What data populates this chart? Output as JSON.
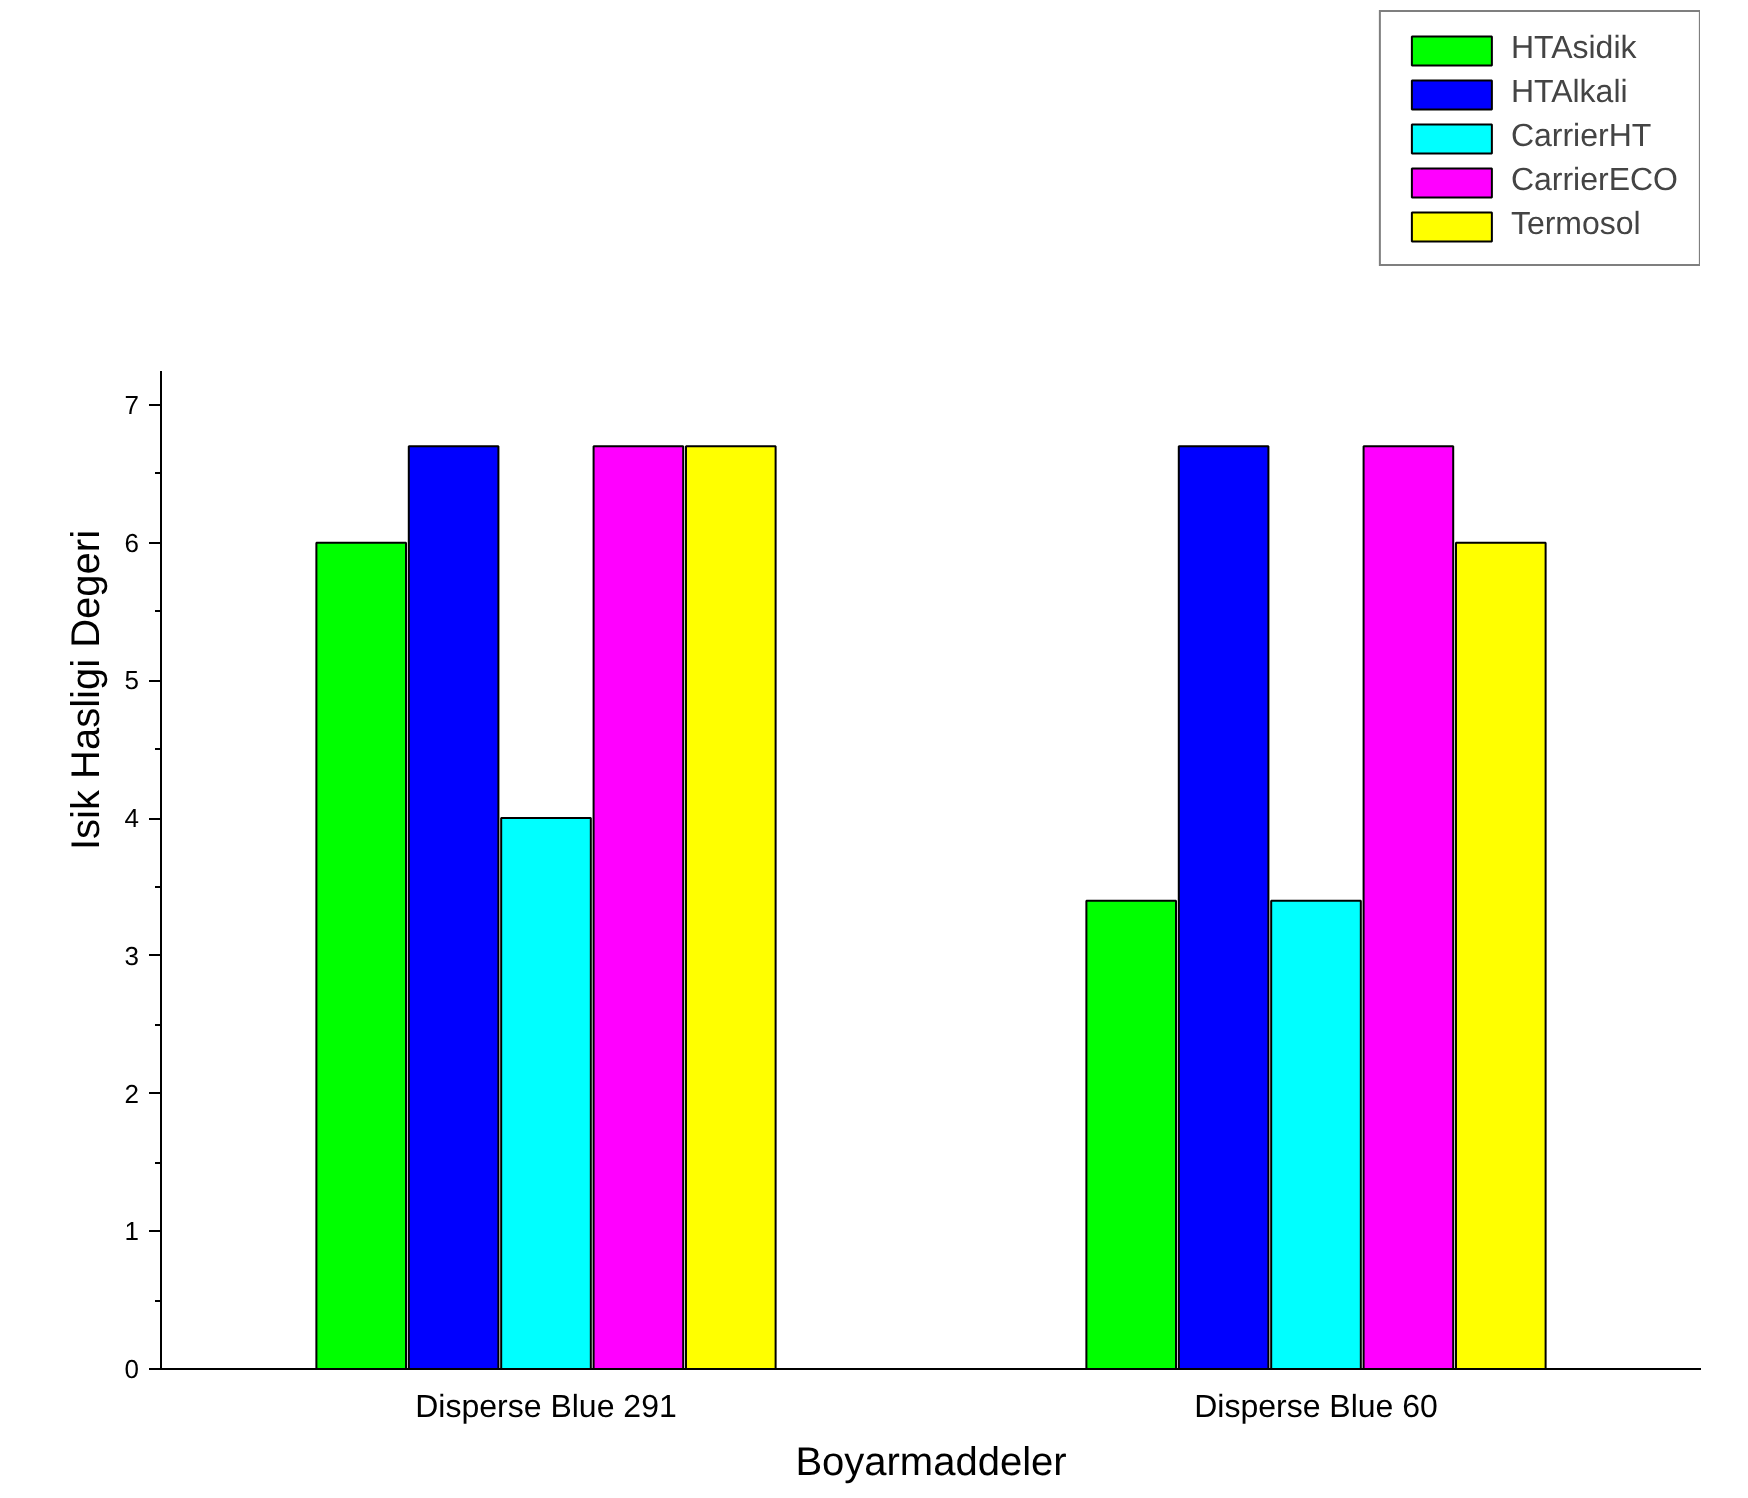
{
  "chart_data": {
    "type": "bar",
    "xlabel": "Boyarmaddeler",
    "ylabel": "Isik Hasligi Degeri",
    "categories": [
      "Disperse Blue 291",
      "Disperse Blue 60"
    ],
    "series": [
      {
        "name": "HTAsidik",
        "color": "#00ff00",
        "values": [
          6,
          3.4
        ]
      },
      {
        "name": "HTAlkali",
        "color": "#0000ff",
        "values": [
          6.7,
          6.7
        ]
      },
      {
        "name": "CarrierHT",
        "color": "#00ffff",
        "values": [
          4,
          3.4
        ]
      },
      {
        "name": "CarrierECO",
        "color": "#ff00ff",
        "values": [
          6.7,
          6.7
        ]
      },
      {
        "name": "Termosol",
        "color": "#ffff00",
        "values": [
          6.7,
          6
        ]
      }
    ],
    "ylim": [
      0,
      7.25
    ],
    "yticks": [
      0,
      1,
      2,
      3,
      4,
      5,
      6,
      7
    ],
    "grid": false,
    "legend": "top right"
  }
}
